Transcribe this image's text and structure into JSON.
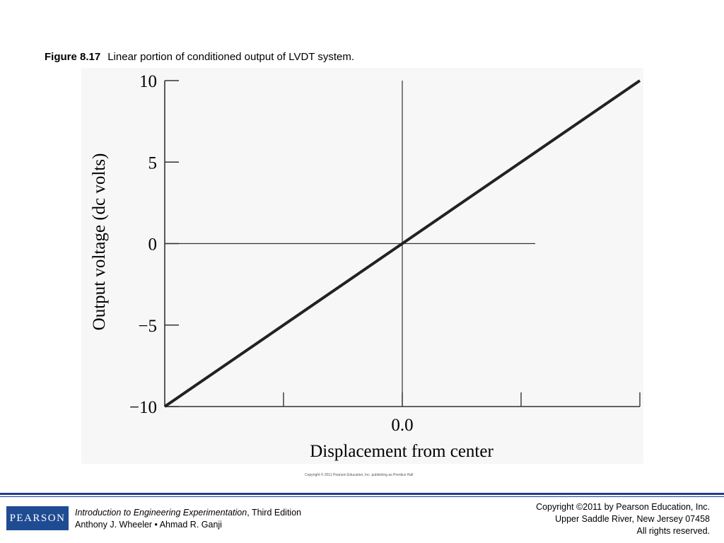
{
  "caption": {
    "figure_label": "Figure 8.17",
    "text": "Linear portion of conditioned output of LVDT system."
  },
  "chart_data": {
    "type": "line",
    "xlabel": "Displacement from center",
    "ylabel": "Output voltage (dc volts)",
    "x_tick_labels": [
      "0.0"
    ],
    "y_ticks": [
      10,
      5,
      0,
      -5,
      -10
    ],
    "y_tick_labels": [
      "10",
      "5",
      "0",
      "−5",
      "−10"
    ],
    "ylim": [
      -10,
      10
    ],
    "xlim": [
      -1,
      1
    ],
    "series": [
      {
        "x": [
          -1,
          1
        ],
        "y": [
          -10,
          10
        ]
      }
    ],
    "grid": false,
    "copyright_note": "Copyright © 2011 Pearson Education, Inc. publishing as Prentice Hall"
  },
  "footer": {
    "logo": "PEARSON",
    "book_title": "Introduction to Engineering Experimentation",
    "edition": ", Third Edition",
    "authors": "Anthony J. Wheeler • Ahmad R. Ganji",
    "copyright_line1": "Copyright ©2011 by Pearson Education, Inc.",
    "copyright_line2": "Upper Saddle River, New Jersey 07458",
    "copyright_line3": "All rights reserved."
  }
}
